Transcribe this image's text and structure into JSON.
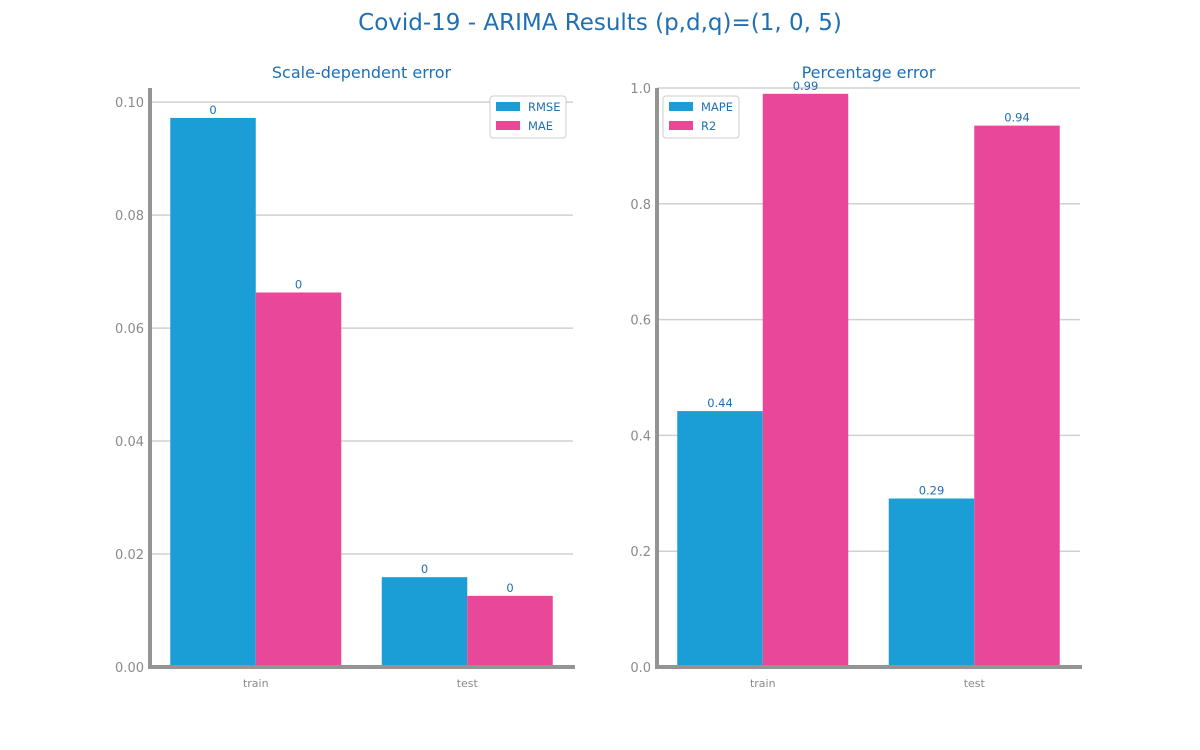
{
  "title": "Covid-19 - ARIMA Results (p,d,q)=(1, 0, 5)",
  "colors": {
    "series1": "#1b9ed6",
    "series2": "#e94899",
    "axis": "#949494",
    "grid": "#d0d0d0",
    "text": "#1f6fb2"
  },
  "chart_data": [
    {
      "type": "bar",
      "title": "Scale-dependent error",
      "categories": [
        "train",
        "test"
      ],
      "series": [
        {
          "name": "RMSE",
          "values": [
            0.0972,
            0.0159
          ],
          "labels": [
            "0",
            "0"
          ]
        },
        {
          "name": "MAE",
          "values": [
            0.0663,
            0.0126
          ],
          "labels": [
            "0",
            "0"
          ]
        }
      ],
      "xlabel": "",
      "ylabel": "",
      "ylim": [
        0,
        0.1
      ],
      "yticks": [
        "0.00",
        "0.02",
        "0.04",
        "0.06",
        "0.08",
        "0.10"
      ],
      "grid": true,
      "legend": "top-right"
    },
    {
      "type": "bar",
      "title": "Percentage error",
      "categories": [
        "train",
        "test"
      ],
      "series": [
        {
          "name": "MAPE",
          "values": [
            0.442,
            0.291
          ],
          "labels": [
            "0.44",
            "0.29"
          ]
        },
        {
          "name": "R2",
          "values": [
            0.99,
            0.935
          ],
          "labels": [
            "0.99",
            "0.94"
          ]
        }
      ],
      "xlabel": "",
      "ylabel": "",
      "ylim": [
        0,
        1.0
      ],
      "yticks": [
        "0.0",
        "0.2",
        "0.4",
        "0.6",
        "0.8",
        "1.0"
      ],
      "grid": true,
      "legend": "top-left"
    }
  ]
}
